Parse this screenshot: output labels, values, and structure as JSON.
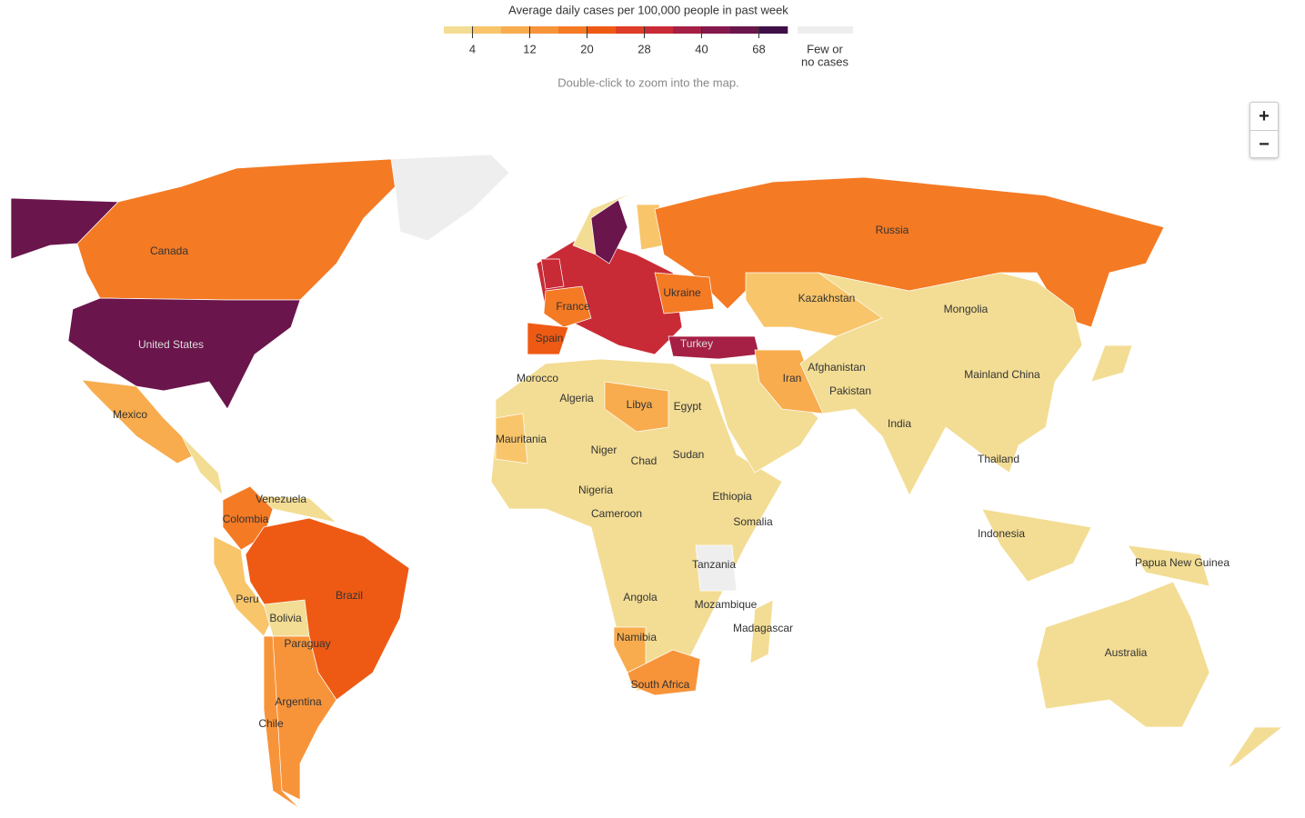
{
  "legend": {
    "title": "Average daily cases per 100,000 people in past week",
    "colors": [
      "#f3dd94",
      "#f8c56a",
      "#f8ac4e",
      "#f7943a",
      "#f47a24",
      "#ee5a14",
      "#de3e27",
      "#c92b36",
      "#a61f44",
      "#85184c",
      "#6a154c",
      "#3f0f48"
    ],
    "ticks": [
      4,
      12,
      20,
      28,
      40,
      68
    ],
    "no_data": {
      "color": "#eeeeee",
      "label": [
        "Few or",
        "no cases"
      ]
    }
  },
  "hint": "Double-click to zoom into the map.",
  "zoom": {
    "in": "+",
    "out": "−"
  },
  "country_labels": [
    "Canada",
    "United States",
    "Mexico",
    "Venezuela",
    "Colombia",
    "Brazil",
    "Peru",
    "Bolivia",
    "Paraguay",
    "Argentina",
    "Chile",
    "France",
    "Spain",
    "Ukraine",
    "Russia",
    "Kazakhstan",
    "Mongolia",
    "Turkey",
    "Afghanistan",
    "Iran",
    "Pakistan",
    "Mainland China",
    "India",
    "Thailand",
    "Morocco",
    "Algeria",
    "Libya",
    "Egypt",
    "Mauritania",
    "Niger",
    "Chad",
    "Sudan",
    "Nigeria",
    "Ethiopia",
    "Cameroon",
    "Somalia",
    "Tanzania",
    "Angola",
    "Mozambique",
    "Madagascar",
    "Namibia",
    "South Africa",
    "Indonesia",
    "Papua New Guinea",
    "Australia"
  ]
}
